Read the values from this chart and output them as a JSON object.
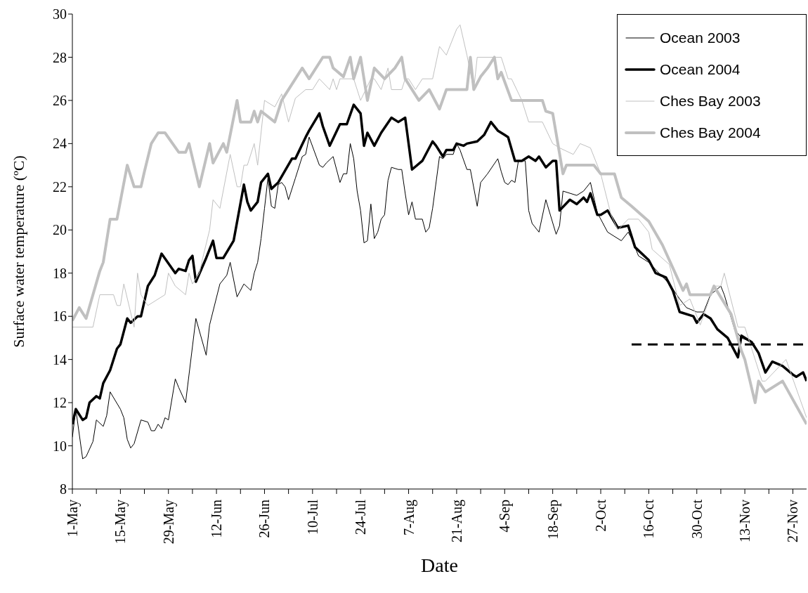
{
  "chart_data": {
    "type": "line",
    "xlabel": "Date",
    "ylabel": "Surface water temperature (ºC)",
    "xlim": [
      "--05-01",
      "--12-01"
    ],
    "xticks": [
      {
        "value": "--05-01",
        "label": "1-May"
      },
      {
        "value": "--05-08",
        "label": null
      },
      {
        "value": "--05-15",
        "label": "15-May"
      },
      {
        "value": "--05-22",
        "label": null
      },
      {
        "value": "--05-29",
        "label": "29-May"
      },
      {
        "value": "--06-05",
        "label": null
      },
      {
        "value": "--06-12",
        "label": "12-Jun"
      },
      {
        "value": "--06-19",
        "label": null
      },
      {
        "value": "--06-26",
        "label": "26-Jun"
      },
      {
        "value": "--07-03",
        "label": null
      },
      {
        "value": "--07-10",
        "label": "10-Jul"
      },
      {
        "value": "--07-17",
        "label": null
      },
      {
        "value": "--07-24",
        "label": "24-Jul"
      },
      {
        "value": "--07-31",
        "label": null
      },
      {
        "value": "--08-07",
        "label": "7-Aug"
      },
      {
        "value": "--08-14",
        "label": null
      },
      {
        "value": "--08-21",
        "label": "21-Aug"
      },
      {
        "value": "--08-28",
        "label": null
      },
      {
        "value": "--09-04",
        "label": "4-Sep"
      },
      {
        "value": "--09-11",
        "label": null
      },
      {
        "value": "--09-18",
        "label": "18-Sep"
      },
      {
        "value": "--09-25",
        "label": null
      },
      {
        "value": "--10-02",
        "label": "2-Oct"
      },
      {
        "value": "--10-09",
        "label": null
      },
      {
        "value": "--10-16",
        "label": "16-Oct"
      },
      {
        "value": "--10-23",
        "label": null
      },
      {
        "value": "--10-30",
        "label": "30-Oct"
      },
      {
        "value": "--11-06",
        "label": null
      },
      {
        "value": "--11-13",
        "label": "13-Nov"
      },
      {
        "value": "--11-20",
        "label": null
      },
      {
        "value": "--11-27",
        "label": "27-Nov"
      }
    ],
    "ylim": [
      8,
      30
    ],
    "yticks": [
      8,
      10,
      12,
      14,
      16,
      18,
      20,
      22,
      24,
      26,
      28,
      30
    ],
    "legend": "top right",
    "marker": "none",
    "series": [
      {
        "name": "Ocean 2003",
        "color": "#000000",
        "x": [
          "--05-01",
          "--05-02",
          "--05-04",
          "--05-05",
          "--05-07",
          "--05-08",
          "--05-10",
          "--05-11",
          "--05-12",
          "--05-15",
          "--05-16",
          "--05-17",
          "--05-18",
          "--05-19",
          "--05-21",
          "--05-23",
          "--05-24",
          "--05-25",
          "--05-26",
          "--05-27",
          "--05-28",
          "--05-29",
          "--05-31",
          "--06-01",
          "--06-03",
          "--06-06",
          "--06-09",
          "--06-10",
          "--06-13",
          "--06-15",
          "--06-16",
          "--06-18",
          "--06-20",
          "--06-22",
          "--06-23",
          "--06-24",
          "--06-25",
          "--06-26",
          "--06-27",
          "--06-28",
          "--06-29",
          "--06-30",
          "--07-01",
          "--07-02",
          "--07-03",
          "--07-05",
          "--07-07",
          "--07-08",
          "--07-09",
          "--07-12",
          "--07-13",
          "--07-14",
          "--07-16",
          "--07-18",
          "--07-19",
          "--07-20",
          "--07-21",
          "--07-22",
          "--07-23",
          "--07-24",
          "--07-25",
          "--07-26",
          "--07-27",
          "--07-28",
          "--07-29",
          "--07-30",
          "--07-31",
          "--08-01",
          "--08-02",
          "--08-04",
          "--08-05",
          "--08-06",
          "--08-07",
          "--08-08",
          "--08-09",
          "--08-11",
          "--08-12",
          "--08-13",
          "--08-14",
          "--08-16",
          "--08-17",
          "--08-18",
          "--08-20",
          "--08-21",
          "--08-22",
          "--08-24",
          "--08-25",
          "--08-27",
          "--08-28",
          "--08-30",
          "--09-02",
          "--09-03",
          "--09-04",
          "--09-05",
          "--09-06",
          "--09-07",
          "--09-08",
          "--09-10",
          "--09-11",
          "--09-12",
          "--09-14",
          "--09-16",
          "--09-19",
          "--09-20",
          "--09-21",
          "--09-23",
          "--09-25",
          "--09-27",
          "--09-29",
          "--10-01",
          "--10-04",
          "--10-08",
          "--10-10",
          "--10-11",
          "--10-13",
          "--10-16",
          "--10-19",
          "--10-22",
          "--10-25",
          "--10-27",
          "--10-30",
          "--11-01",
          "--11-03",
          "--11-06",
          "--11-07",
          "--11-10",
          "--11-12",
          "--11-15"
        ],
        "values": [
          10.4,
          11.7,
          9.4,
          9.5,
          10.2,
          11.2,
          10.9,
          11.4,
          12.5,
          11.7,
          11.3,
          10.3,
          9.9,
          10.1,
          11.2,
          11.1,
          10.7,
          10.7,
          11.0,
          10.8,
          11.3,
          11.2,
          13.1,
          12.7,
          12.0,
          15.9,
          14.2,
          15.6,
          17.5,
          17.9,
          18.5,
          16.9,
          17.5,
          17.2,
          18.0,
          18.5,
          19.6,
          21.0,
          22.4,
          21.1,
          21.0,
          22.1,
          22.2,
          22.0,
          21.4,
          22.4,
          23.4,
          23.5,
          24.3,
          23.0,
          22.9,
          23.1,
          23.4,
          22.2,
          22.6,
          22.6,
          24.0,
          23.3,
          21.8,
          20.9,
          19.4,
          19.5,
          21.2,
          19.6,
          19.9,
          20.5,
          20.7,
          22.3,
          22.9,
          22.8,
          22.8,
          21.7,
          20.7,
          21.3,
          20.5,
          20.5,
          19.9,
          20.1,
          21.0,
          23.4,
          23.3,
          23.5,
          23.5,
          24.0,
          23.7,
          22.8,
          22.8,
          21.1,
          22.2,
          22.6,
          23.3,
          22.7,
          22.2,
          22.1,
          22.3,
          22.2,
          23.2,
          23.2,
          20.9,
          20.3,
          19.9,
          21.4,
          19.8,
          20.2,
          21.8,
          21.7,
          21.6,
          21.8,
          22.2,
          20.8,
          19.9,
          19.5,
          19.9,
          19.6,
          18.8,
          18.5,
          18.0,
          17.5,
          16.8,
          16.4,
          16.2,
          16.2,
          17.0,
          17.4,
          17.0,
          15.4,
          15.0,
          14.8
        ]
      },
      {
        "name": "Ocean 2004",
        "color": "#000000",
        "x": [
          "--05-01",
          "--05-02",
          "--05-04",
          "--05-05",
          "--05-06",
          "--05-08",
          "--05-09",
          "--05-10",
          "--05-12",
          "--05-14",
          "--05-15",
          "--05-17",
          "--05-18",
          "--05-20",
          "--05-21",
          "--05-23",
          "--05-25",
          "--05-27",
          "--05-31",
          "--06-01",
          "--06-03",
          "--06-04",
          "--06-05",
          "--06-06",
          "--06-09",
          "--06-11",
          "--06-12",
          "--06-14",
          "--06-17",
          "--06-20",
          "--06-21",
          "--06-22",
          "--06-24",
          "--06-25",
          "--06-27",
          "--06-28",
          "--06-30",
          "--07-04",
          "--07-05",
          "--07-08",
          "--07-09",
          "--07-12",
          "--07-13",
          "--07-15",
          "--07-18",
          "--07-20",
          "--07-22",
          "--07-24",
          "--07-25",
          "--07-26",
          "--07-28",
          "--07-30",
          "--08-02",
          "--08-04",
          "--08-06",
          "--08-07",
          "--08-08",
          "--08-11",
          "--08-14",
          "--08-15",
          "--08-17",
          "--08-18",
          "--08-20",
          "--08-21",
          "--08-23",
          "--08-24",
          "--08-27",
          "--08-29",
          "--08-31",
          "--09-02",
          "--09-04",
          "--09-05",
          "--09-07",
          "--09-09",
          "--09-11",
          "--09-13",
          "--09-14",
          "--09-16",
          "--09-18",
          "--09-19",
          "--09-20",
          "--09-23",
          "--09-25",
          "--09-27",
          "--09-28",
          "--09-29",
          "--10-01",
          "--10-02",
          "--10-04",
          "--10-07",
          "--10-10",
          "--10-12",
          "--10-16",
          "--10-18",
          "--10-21",
          "--10-23",
          "--10-25",
          "--10-29",
          "--10-30",
          "--11-01",
          "--11-03",
          "--11-05",
          "--11-08",
          "--11-11",
          "--11-12",
          "--11-15",
          "--11-17",
          "--11-19",
          "--11-21",
          "--11-24",
          "--11-27",
          "--11-28",
          "--11-30",
          "--12-01"
        ],
        "values": [
          11.0,
          11.7,
          11.2,
          11.3,
          12.0,
          12.3,
          12.2,
          12.9,
          13.5,
          14.5,
          14.7,
          15.9,
          15.7,
          16.0,
          16.0,
          17.4,
          17.9,
          18.9,
          18.0,
          18.2,
          18.1,
          18.6,
          18.8,
          17.6,
          18.7,
          19.5,
          18.7,
          18.7,
          19.5,
          22.1,
          21.3,
          20.9,
          21.3,
          22.2,
          22.6,
          21.9,
          22.2,
          23.3,
          23.3,
          24.3,
          24.6,
          25.4,
          24.8,
          23.9,
          24.9,
          24.9,
          25.8,
          25.4,
          23.9,
          24.5,
          23.9,
          24.5,
          25.2,
          25.0,
          25.2,
          24.0,
          22.8,
          23.2,
          24.1,
          23.9,
          23.4,
          23.7,
          23.7,
          24.0,
          23.9,
          24.0,
          24.1,
          24.4,
          25.0,
          24.6,
          24.4,
          24.3,
          23.2,
          23.2,
          23.4,
          23.2,
          23.4,
          22.9,
          23.2,
          23.2,
          20.9,
          21.4,
          21.2,
          21.5,
          21.3,
          21.7,
          20.7,
          20.7,
          20.9,
          20.1,
          20.2,
          19.2,
          18.6,
          18.0,
          17.8,
          17.2,
          16.2,
          16.0,
          15.7,
          16.1,
          15.9,
          15.4,
          15.0,
          14.1,
          15.1,
          14.8,
          14.3,
          13.4,
          13.9,
          13.7,
          13.3,
          13.2,
          13.4,
          13.0
        ]
      },
      {
        "name": "Ches Bay 2003",
        "color": "#c0c0c0",
        "x": [
          "--05-01",
          "--05-07",
          "--05-09",
          "--05-13",
          "--05-14",
          "--05-15",
          "--05-16",
          "--05-19",
          "--05-20",
          "--05-21",
          "--05-23",
          "--05-28",
          "--05-29",
          "--05-31",
          "--06-03",
          "--06-04",
          "--06-05",
          "--06-07",
          "--06-08",
          "--06-10",
          "--06-11",
          "--06-13",
          "--06-16",
          "--06-18",
          "--06-19",
          "--06-20",
          "--06-21",
          "--06-23",
          "--06-24",
          "--06-26",
          "--06-29",
          "--07-01",
          "--07-03",
          "--07-05",
          "--07-08",
          "--07-10",
          "--07-12",
          "--07-15",
          "--07-16",
          "--07-17",
          "--07-18",
          "--07-22",
          "--07-24",
          "--07-27",
          "--07-28",
          "--07-30",
          "--08-01",
          "--08-02",
          "--08-05",
          "--08-06",
          "--08-07",
          "--08-09",
          "--08-11",
          "--08-14",
          "--08-16",
          "--08-18",
          "--08-21",
          "--08-22",
          "--08-24",
          "--08-26",
          "--08-27",
          "--09-03",
          "--09-05",
          "--09-06",
          "--09-09",
          "--09-11",
          "--09-15",
          "--09-18",
          "--09-20",
          "--09-24",
          "--09-26",
          "--09-29",
          "--10-02",
          "--10-05",
          "--10-07",
          "--10-10",
          "--10-13",
          "--10-16",
          "--10-17",
          "--10-22",
          "--10-25",
          "--10-28",
          "--10-31",
          "--11-04",
          "--11-06",
          "--11-07",
          "--11-11",
          "--11-13",
          "--11-18",
          "--11-19",
          "--11-25",
          "--12-01"
        ],
        "values": [
          15.5,
          15.5,
          17.0,
          17.0,
          16.5,
          16.5,
          17.5,
          15.5,
          18.0,
          17.0,
          16.5,
          17.0,
          18.0,
          17.4,
          17.0,
          18.0,
          17.5,
          18.0,
          18.7,
          20.0,
          21.4,
          21.0,
          23.5,
          22.0,
          22.0,
          23.0,
          23.0,
          24.0,
          23.0,
          26.0,
          25.7,
          26.3,
          25.0,
          26.1,
          26.5,
          26.5,
          27.0,
          26.5,
          27.0,
          26.5,
          27.0,
          27.0,
          26.0,
          27.0,
          27.0,
          26.5,
          27.5,
          26.5,
          26.5,
          27.0,
          27.0,
          26.5,
          27.0,
          27.0,
          28.5,
          28.1,
          29.3,
          29.5,
          28.1,
          26.5,
          28.0,
          28.0,
          27.0,
          27.0,
          26.0,
          25.0,
          25.0,
          24.0,
          23.8,
          23.5,
          24.0,
          23.8,
          22.6,
          20.7,
          20.0,
          20.5,
          20.5,
          19.9,
          19.1,
          18.4,
          16.5,
          16.8,
          15.6,
          17.4,
          17.4,
          18.0,
          15.5,
          15.5,
          13.0,
          13.0,
          14.0,
          11.3
        ]
      },
      {
        "name": "Ches Bay 2004",
        "color": "#c0c0c0",
        "x": [
          "--05-01",
          "--05-03",
          "--05-05",
          "--05-09",
          "--05-10",
          "--05-12",
          "--05-14",
          "--05-17",
          "--05-19",
          "--05-21",
          "--05-22",
          "--05-24",
          "--05-26",
          "--05-28",
          "--06-01",
          "--06-03",
          "--06-04",
          "--06-07",
          "--06-10",
          "--06-11",
          "--06-14",
          "--06-15",
          "--06-18",
          "--06-19",
          "--06-22",
          "--06-23",
          "--06-24",
          "--06-25",
          "--06-29",
          "--07-01",
          "--07-07",
          "--07-09",
          "--07-13",
          "--07-15",
          "--07-16",
          "--07-19",
          "--07-21",
          "--07-22",
          "--07-24",
          "--07-26",
          "--07-28",
          "--07-31",
          "--08-03",
          "--08-05",
          "--08-06",
          "--08-10",
          "--08-13",
          "--08-16",
          "--08-18",
          "--08-24",
          "--08-25",
          "--08-26",
          "--08-28",
          "--08-30",
          "--09-01",
          "--09-02",
          "--09-03",
          "--09-06",
          "--09-15",
          "--09-16",
          "--09-18",
          "--09-21",
          "--09-22",
          "--09-30",
          "--10-02",
          "--10-06",
          "--10-08",
          "--10-11",
          "--10-16",
          "--10-20",
          "--10-24",
          "--10-26",
          "--10-27",
          "--10-28",
          "--11-03",
          "--11-04",
          "--11-09",
          "--11-12",
          "--11-13",
          "--11-16",
          "--11-17",
          "--11-19",
          "--11-24",
          "--12-01"
        ],
        "values": [
          15.8,
          16.4,
          15.9,
          18.1,
          18.5,
          20.5,
          20.5,
          23.0,
          22.0,
          22.0,
          22.7,
          24.0,
          24.5,
          24.5,
          23.6,
          23.6,
          24.0,
          22.0,
          24.0,
          23.1,
          24.0,
          23.6,
          26.0,
          25.0,
          25.0,
          25.5,
          25.0,
          25.5,
          25.0,
          26.0,
          27.5,
          27.0,
          28.0,
          28.0,
          27.5,
          27.1,
          28.0,
          27.0,
          28.0,
          26.0,
          27.5,
          27.0,
          27.5,
          28.0,
          27.0,
          26.0,
          26.5,
          25.6,
          26.5,
          26.5,
          28.0,
          26.5,
          27.1,
          27.5,
          28.0,
          27.0,
          27.3,
          26.0,
          26.0,
          25.5,
          25.4,
          22.6,
          23.0,
          23.0,
          22.6,
          22.6,
          21.5,
          21.1,
          20.4,
          19.3,
          17.9,
          17.2,
          17.5,
          17.0,
          17.0,
          17.4,
          16.1,
          14.4,
          14.0,
          12.0,
          13.0,
          12.5,
          13.0,
          11.0
        ]
      },
      {
        "type": "line",
        "color": "#000000",
        "line_style": "dashed",
        "x": [
          "--10-11",
          "--11-30"
        ],
        "values": [
          14.7,
          14.7
        ]
      }
    ]
  }
}
